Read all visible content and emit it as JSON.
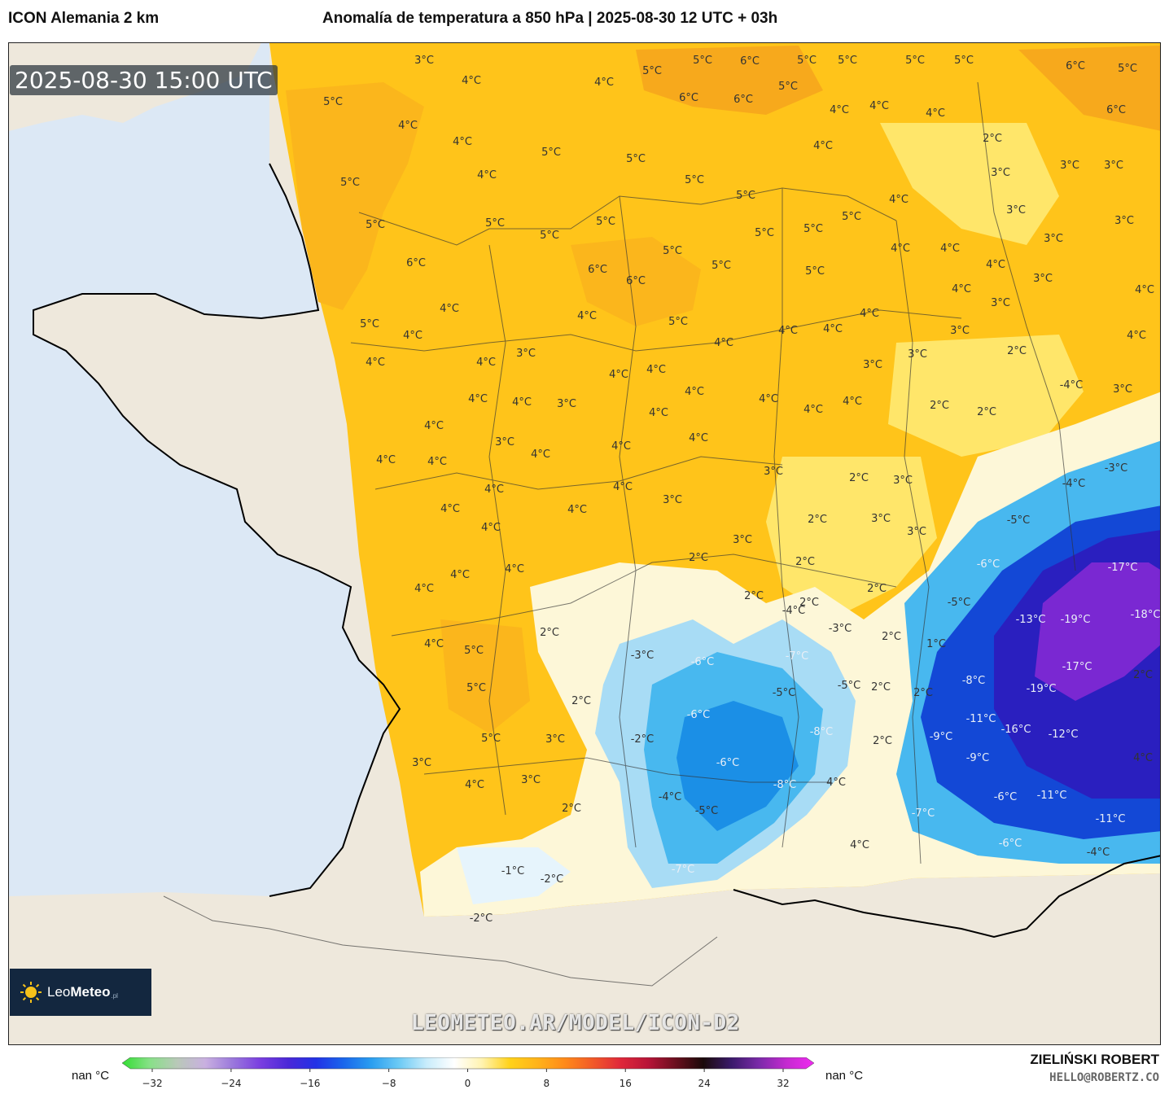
{
  "header": {
    "model_name": "ICON Alemania 2 km",
    "title": "Anomalía de temperatura a 850 hPa | 2025-08-30 12 UTC + 03h"
  },
  "map": {
    "valid_time": "2025-08-30 15:00 UTC",
    "watermark": "LEOMETEO.AR/MODEL/ICON-D2",
    "colors": {
      "sea": "#dce8f5",
      "land": "#eee8dc",
      "warm_6": "#f7a91c",
      "warm_5": "#fbb61c",
      "warm_4": "#ffc41a",
      "warm_3": "#ffd417",
      "warm_2": "#ffe66a",
      "neutral": "#fdf7d8",
      "cold_2": "#e6f4fc",
      "cold_4": "#a8dcf5",
      "cold_6": "#48b8ef",
      "cold_8": "#1b8fe6",
      "cold_11": "#1348d6",
      "cold_14": "#2a1fbf",
      "cold_18": "#7a28d2"
    },
    "labels": [
      {
        "t": "3°C",
        "lon": 520,
        "lat": 72
      },
      {
        "t": "4°C",
        "lon": 578,
        "lat": 97
      },
      {
        "t": "5°C",
        "lon": 408,
        "lat": 123
      },
      {
        "t": "4°C",
        "lon": 500,
        "lat": 152
      },
      {
        "t": "4°C",
        "lon": 567,
        "lat": 172
      },
      {
        "t": "5°C",
        "lon": 429,
        "lat": 222
      },
      {
        "t": "4°C",
        "lon": 597,
        "lat": 213
      },
      {
        "t": "5°C",
        "lon": 676,
        "lat": 185
      },
      {
        "t": "4°C",
        "lon": 741,
        "lat": 99
      },
      {
        "t": "5°C",
        "lon": 800,
        "lat": 85
      },
      {
        "t": "5°C",
        "lon": 862,
        "lat": 72
      },
      {
        "t": "6°C",
        "lon": 920,
        "lat": 73
      },
      {
        "t": "5°C",
        "lon": 990,
        "lat": 72
      },
      {
        "t": "5°C",
        "lon": 1040,
        "lat": 72
      },
      {
        "t": "5°C",
        "lon": 1123,
        "lat": 72
      },
      {
        "t": "5°C",
        "lon": 1183,
        "lat": 72
      },
      {
        "t": "6°C",
        "lon": 1320,
        "lat": 79
      },
      {
        "t": "5°C",
        "lon": 1384,
        "lat": 82
      },
      {
        "t": "6°C",
        "lon": 845,
        "lat": 118
      },
      {
        "t": "6°C",
        "lon": 912,
        "lat": 120
      },
      {
        "t": "5°C",
        "lon": 967,
        "lat": 104
      },
      {
        "t": "4°C",
        "lon": 1030,
        "lat": 133
      },
      {
        "t": "4°C",
        "lon": 1079,
        "lat": 128
      },
      {
        "t": "4°C",
        "lon": 1148,
        "lat": 137
      },
      {
        "t": "6°C",
        "lon": 1370,
        "lat": 133
      },
      {
        "t": "4°C",
        "lon": 1010,
        "lat": 177
      },
      {
        "t": "2°C",
        "lon": 1218,
        "lat": 168
      },
      {
        "t": "5°C",
        "lon": 780,
        "lat": 193
      },
      {
        "t": "5°C",
        "lon": 852,
        "lat": 219
      },
      {
        "t": "5°C",
        "lon": 915,
        "lat": 238
      },
      {
        "t": "3°C",
        "lon": 1228,
        "lat": 210
      },
      {
        "t": "3°C",
        "lon": 1313,
        "lat": 201
      },
      {
        "t": "3°C",
        "lon": 1367,
        "lat": 201
      },
      {
        "t": "4°C",
        "lon": 1103,
        "lat": 243
      },
      {
        "t": "3°C",
        "lon": 1247,
        "lat": 256
      },
      {
        "t": "3°C",
        "lon": 1380,
        "lat": 269
      },
      {
        "t": "5°C",
        "lon": 460,
        "lat": 274
      },
      {
        "t": "5°C",
        "lon": 607,
        "lat": 272
      },
      {
        "t": "5°C",
        "lon": 743,
        "lat": 270
      },
      {
        "t": "5°C",
        "lon": 1045,
        "lat": 264
      },
      {
        "t": "5°C",
        "lon": 674,
        "lat": 287
      },
      {
        "t": "5°C",
        "lon": 938,
        "lat": 284
      },
      {
        "t": "5°C",
        "lon": 998,
        "lat": 279
      },
      {
        "t": "3°C",
        "lon": 1293,
        "lat": 291
      },
      {
        "t": "4°C",
        "lon": 1105,
        "lat": 303
      },
      {
        "t": "4°C",
        "lon": 1166,
        "lat": 303
      },
      {
        "t": "5°C",
        "lon": 825,
        "lat": 306
      },
      {
        "t": "6°C",
        "lon": 510,
        "lat": 321
      },
      {
        "t": "5°C",
        "lon": 885,
        "lat": 324
      },
      {
        "t": "5°C",
        "lon": 1000,
        "lat": 331
      },
      {
        "t": "4°C",
        "lon": 1222,
        "lat": 323
      },
      {
        "t": "3°C",
        "lon": 1280,
        "lat": 340
      },
      {
        "t": "6°C",
        "lon": 733,
        "lat": 329
      },
      {
        "t": "6°C",
        "lon": 780,
        "lat": 343
      },
      {
        "t": "4°C",
        "lon": 1180,
        "lat": 353
      },
      {
        "t": "4°C",
        "lon": 1405,
        "lat": 354
      },
      {
        "t": "4°C",
        "lon": 551,
        "lat": 377
      },
      {
        "t": "4°C",
        "lon": 720,
        "lat": 386
      },
      {
        "t": "4°C",
        "lon": 1067,
        "lat": 383
      },
      {
        "t": "3°C",
        "lon": 1228,
        "lat": 370
      },
      {
        "t": "5°C",
        "lon": 453,
        "lat": 396
      },
      {
        "t": "5°C",
        "lon": 832,
        "lat": 393
      },
      {
        "t": "4°C",
        "lon": 506,
        "lat": 410
      },
      {
        "t": "4°C",
        "lon": 888,
        "lat": 419
      },
      {
        "t": "4°C",
        "lon": 967,
        "lat": 404
      },
      {
        "t": "4°C",
        "lon": 1022,
        "lat": 402
      },
      {
        "t": "3°C",
        "lon": 1178,
        "lat": 404
      },
      {
        "t": "4°C",
        "lon": 1395,
        "lat": 410
      },
      {
        "t": "3°C",
        "lon": 1126,
        "lat": 433
      },
      {
        "t": "3°C",
        "lon": 645,
        "lat": 432
      },
      {
        "t": "2°C",
        "lon": 1248,
        "lat": 429
      },
      {
        "t": "4°C",
        "lon": 460,
        "lat": 443
      },
      {
        "t": "4°C",
        "lon": 596,
        "lat": 443
      },
      {
        "t": "3°C",
        "lon": 1071,
        "lat": 446
      },
      {
        "t": "4°C",
        "lon": 805,
        "lat": 452
      },
      {
        "t": "4°C",
        "lon": 759,
        "lat": 458
      },
      {
        "t": "-4°C",
        "lon": 1315,
        "lat": 471
      },
      {
        "t": "3°C",
        "lon": 1378,
        "lat": 476
      },
      {
        "t": "4°C",
        "lon": 852,
        "lat": 479
      },
      {
        "t": "4°C",
        "lon": 586,
        "lat": 488
      },
      {
        "t": "4°C",
        "lon": 640,
        "lat": 492
      },
      {
        "t": "3°C",
        "lon": 695,
        "lat": 494
      },
      {
        "t": "4°C",
        "lon": 943,
        "lat": 488
      },
      {
        "t": "4°C",
        "lon": 1046,
        "lat": 491
      },
      {
        "t": "2°C",
        "lon": 1153,
        "lat": 496
      },
      {
        "t": "4°C",
        "lon": 998,
        "lat": 501
      },
      {
        "t": "2°C",
        "lon": 1211,
        "lat": 504
      },
      {
        "t": "4°C",
        "lon": 808,
        "lat": 505
      },
      {
        "t": "4°C",
        "lon": 532,
        "lat": 521
      },
      {
        "t": "4°C",
        "lon": 857,
        "lat": 536
      },
      {
        "t": "3°C",
        "lon": 619,
        "lat": 541
      },
      {
        "t": "4°C",
        "lon": 762,
        "lat": 546
      },
      {
        "t": "4°C",
        "lon": 663,
        "lat": 556
      },
      {
        "t": "4°C",
        "lon": 473,
        "lat": 563
      },
      {
        "t": "4°C",
        "lon": 536,
        "lat": 565
      },
      {
        "t": "-3°C",
        "lon": 1370,
        "lat": 573
      },
      {
        "t": "3°C",
        "lon": 949,
        "lat": 577
      },
      {
        "t": "2°C",
        "lon": 1054,
        "lat": 585
      },
      {
        "t": "3°C",
        "lon": 1108,
        "lat": 588
      },
      {
        "t": "-4°C",
        "lon": 1318,
        "lat": 592
      },
      {
        "t": "4°C",
        "lon": 606,
        "lat": 599
      },
      {
        "t": "4°C",
        "lon": 764,
        "lat": 596
      },
      {
        "t": "3°C",
        "lon": 825,
        "lat": 612
      },
      {
        "t": "4°C",
        "lon": 552,
        "lat": 623
      },
      {
        "t": "4°C",
        "lon": 708,
        "lat": 624
      },
      {
        "t": "-5°C",
        "lon": 1250,
        "lat": 637
      },
      {
        "t": "2°C",
        "lon": 1003,
        "lat": 636
      },
      {
        "t": "3°C",
        "lon": 1081,
        "lat": 635
      },
      {
        "t": "4°C",
        "lon": 602,
        "lat": 646
      },
      {
        "t": "3°C",
        "lon": 1125,
        "lat": 651
      },
      {
        "t": "3°C",
        "lon": 911,
        "lat": 661
      },
      {
        "t": "2°C",
        "lon": 857,
        "lat": 683
      },
      {
        "t": "2°C",
        "lon": 988,
        "lat": 688
      },
      {
        "t": "-6°C",
        "lon": 1213,
        "lat": 691
      },
      {
        "t": "-17°C",
        "lon": 1378,
        "lat": 695
      },
      {
        "t": "4°C",
        "lon": 631,
        "lat": 697
      },
      {
        "t": "4°C",
        "lon": 564,
        "lat": 704
      },
      {
        "t": "4°C",
        "lon": 520,
        "lat": 721
      },
      {
        "t": "2°C",
        "lon": 1076,
        "lat": 721
      },
      {
        "t": "2°C",
        "lon": 925,
        "lat": 730
      },
      {
        "t": "-5°C",
        "lon": 1177,
        "lat": 738
      },
      {
        "t": "2°C",
        "lon": 993,
        "lat": 738
      },
      {
        "t": "-4°C",
        "lon": 974,
        "lat": 748
      },
      {
        "t": "-13°C",
        "lon": 1265,
        "lat": 759
      },
      {
        "t": "-19°C",
        "lon": 1320,
        "lat": 759
      },
      {
        "t": "-18°C",
        "lon": 1406,
        "lat": 753
      },
      {
        "t": "2°C",
        "lon": 674,
        "lat": 775
      },
      {
        "t": "-3°C",
        "lon": 1031,
        "lat": 770
      },
      {
        "t": "2°C",
        "lon": 1094,
        "lat": 780
      },
      {
        "t": "1°C",
        "lon": 1149,
        "lat": 789
      },
      {
        "t": "4°C",
        "lon": 532,
        "lat": 789
      },
      {
        "t": "5°C",
        "lon": 581,
        "lat": 797
      },
      {
        "t": "-3°C",
        "lon": 788,
        "lat": 803
      },
      {
        "t": "-7°C",
        "lon": 978,
        "lat": 804
      },
      {
        "t": "-6°C",
        "lon": 862,
        "lat": 811
      },
      {
        "t": "-17°C",
        "lon": 1322,
        "lat": 817
      },
      {
        "t": "2°C",
        "lon": 1403,
        "lat": 827
      },
      {
        "t": "-8°C",
        "lon": 1195,
        "lat": 834
      },
      {
        "t": "5°C",
        "lon": 584,
        "lat": 843
      },
      {
        "t": "-5°C",
        "lon": 962,
        "lat": 849
      },
      {
        "t": "-5°C",
        "lon": 1042,
        "lat": 840
      },
      {
        "t": "2°C",
        "lon": 1081,
        "lat": 842
      },
      {
        "t": "2°C",
        "lon": 1133,
        "lat": 849
      },
      {
        "t": "-19°C",
        "lon": 1278,
        "lat": 844
      },
      {
        "t": "2°C",
        "lon": 713,
        "lat": 859
      },
      {
        "t": "-6°C",
        "lon": 857,
        "lat": 876
      },
      {
        "t": "-11°C",
        "lon": 1204,
        "lat": 881
      },
      {
        "t": "-16°C",
        "lon": 1247,
        "lat": 894
      },
      {
        "t": "-8°C",
        "lon": 1008,
        "lat": 897
      },
      {
        "t": "-9°C",
        "lon": 1155,
        "lat": 903
      },
      {
        "t": "-12°C",
        "lon": 1305,
        "lat": 900
      },
      {
        "t": "5°C",
        "lon": 602,
        "lat": 905
      },
      {
        "t": "3°C",
        "lon": 681,
        "lat": 906
      },
      {
        "t": "-2°C",
        "lon": 788,
        "lat": 906
      },
      {
        "t": "2°C",
        "lon": 1083,
        "lat": 908
      },
      {
        "t": "-9°C",
        "lon": 1200,
        "lat": 929
      },
      {
        "t": "4°C",
        "lon": 1403,
        "lat": 929
      },
      {
        "t": "3°C",
        "lon": 517,
        "lat": 935
      },
      {
        "t": "-6°C",
        "lon": 893,
        "lat": 935
      },
      {
        "t": "3°C",
        "lon": 651,
        "lat": 956
      },
      {
        "t": "4°C",
        "lon": 582,
        "lat": 962
      },
      {
        "t": "-8°C",
        "lon": 963,
        "lat": 962
      },
      {
        "t": "4°C",
        "lon": 1026,
        "lat": 959
      },
      {
        "t": "-6°C",
        "lon": 1234,
        "lat": 977
      },
      {
        "t": "-11°C",
        "lon": 1291,
        "lat": 975
      },
      {
        "t": "-4°C",
        "lon": 822,
        "lat": 977
      },
      {
        "t": "2°C",
        "lon": 701,
        "lat": 991
      },
      {
        "t": "-5°C",
        "lon": 867,
        "lat": 994
      },
      {
        "t": "-7°C",
        "lon": 1133,
        "lat": 997
      },
      {
        "t": "-11°C",
        "lon": 1363,
        "lat": 1004
      },
      {
        "t": "4°C",
        "lon": 1055,
        "lat": 1036
      },
      {
        "t": "-6°C",
        "lon": 1240,
        "lat": 1034
      },
      {
        "t": "-4°C",
        "lon": 1348,
        "lat": 1045
      },
      {
        "t": "-7°C",
        "lon": 838,
        "lat": 1066
      },
      {
        "t": "-1°C",
        "lon": 629,
        "lat": 1068
      },
      {
        "t": "-2°C",
        "lon": 677,
        "lat": 1078
      },
      {
        "t": "-2°C",
        "lon": 590,
        "lat": 1126
      }
    ]
  },
  "legend": {
    "left_nan": "nan °C",
    "right_nan": "nan °C",
    "ticks": [
      "−32",
      "−24",
      "−16",
      "−8",
      "0",
      "8",
      "16",
      "24",
      "32"
    ],
    "stops": [
      "#33dd33",
      "#88e088",
      "#b9c8b9",
      "#c9b0e0",
      "#9a78dc",
      "#7a3ee0",
      "#4a28d8",
      "#2232e6",
      "#1a66ec",
      "#2a9ef0",
      "#6ccaf5",
      "#c8ecfb",
      "#ffffff",
      "#fff3b0",
      "#ffd21a",
      "#ffb31a",
      "#ff8a1a",
      "#f25a28",
      "#e0283a",
      "#b81438",
      "#6a0f1e",
      "#1a0a0a",
      "#3a1a6a",
      "#7a2aa8",
      "#c42ad0",
      "#f02af0"
    ]
  },
  "footer": {
    "author": "ZIELIŃSKI ROBERT",
    "contact": "HELLO@ROBERTZ.CO"
  },
  "logo": {
    "name_light": "Leo",
    "name_bold": "Meteo",
    "tld": ".pl"
  }
}
